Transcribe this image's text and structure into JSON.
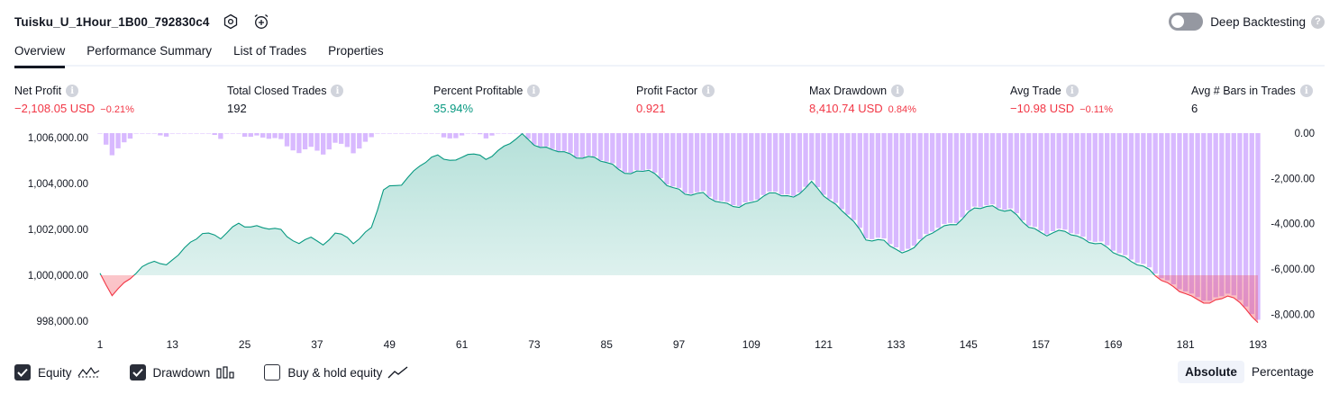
{
  "header": {
    "strategy_name": "Tuisku_U_1Hour_1B00_792830c4",
    "settings_icon": "gear-hexagon-icon",
    "alert_icon": "add-alert-clock-icon"
  },
  "deep_backtesting": {
    "label": "Deep Backtesting",
    "enabled": false,
    "help": "?"
  },
  "tabs": [
    "Overview",
    "Performance Summary",
    "List of Trades",
    "Properties"
  ],
  "active_tab": "Overview",
  "stats": [
    {
      "label": "Net Profit",
      "value": "−2,108.05 USD",
      "pct": "−0.21%",
      "tone": "neg"
    },
    {
      "label": "Total Closed Trades",
      "value": "192",
      "pct": "",
      "tone": "neutral"
    },
    {
      "label": "Percent Profitable",
      "value": "35.94%",
      "pct": "",
      "tone": "pos"
    },
    {
      "label": "Profit Factor",
      "value": "0.921",
      "pct": "",
      "tone": "neg"
    },
    {
      "label": "Max Drawdown",
      "value": "8,410.74 USD",
      "pct": "0.84%",
      "tone": "neg"
    },
    {
      "label": "Avg Trade",
      "value": "−10.98 USD",
      "pct": "−0.11%",
      "tone": "neg"
    },
    {
      "label": "Avg # Bars in Trades",
      "value": "6",
      "pct": "",
      "tone": "neutral"
    }
  ],
  "chart_data": {
    "type": "area",
    "x_ticks": [
      1,
      13,
      25,
      37,
      49,
      61,
      73,
      85,
      97,
      109,
      121,
      133,
      145,
      157,
      169,
      181,
      193
    ],
    "left_axis": {
      "ticks": [
        "1,006,000.00",
        "1,004,000.00",
        "1,002,000.00",
        "1,000,000.00",
        "998,000.00"
      ],
      "tick_values": [
        1006000,
        1004000,
        1002000,
        1000000,
        998000
      ],
      "range": [
        997800,
        1006200
      ]
    },
    "right_axis": {
      "ticks": [
        "0.00",
        "-2,000.00",
        "-4,000.00",
        "-6,000.00",
        "-8,000.00"
      ],
      "tick_values": [
        0,
        -2000,
        -4000,
        -6000,
        -8000
      ],
      "range": [
        -8500,
        0
      ]
    },
    "baseline": 1000000,
    "equity_keypoints": [
      [
        1,
        1000000
      ],
      [
        3,
        999200
      ],
      [
        8,
        1000300
      ],
      [
        10,
        1000700
      ],
      [
        12,
        1000400
      ],
      [
        16,
        1001400
      ],
      [
        18,
        1001900
      ],
      [
        21,
        1001600
      ],
      [
        24,
        1002300
      ],
      [
        26,
        1002100
      ],
      [
        31,
        1002000
      ],
      [
        34,
        1001300
      ],
      [
        36,
        1001700
      ],
      [
        38,
        1001300
      ],
      [
        40,
        1001900
      ],
      [
        43,
        1001400
      ],
      [
        46,
        1002100
      ],
      [
        48,
        1003700
      ],
      [
        51,
        1004000
      ],
      [
        54,
        1004800
      ],
      [
        57,
        1005200
      ],
      [
        60,
        1005000
      ],
      [
        62,
        1005300
      ],
      [
        65,
        1005100
      ],
      [
        68,
        1005600
      ],
      [
        71,
        1006100
      ],
      [
        74,
        1005600
      ],
      [
        77,
        1005400
      ],
      [
        80,
        1005200
      ],
      [
        83,
        1005100
      ],
      [
        86,
        1004800
      ],
      [
        89,
        1004400
      ],
      [
        92,
        1004600
      ],
      [
        95,
        1004000
      ],
      [
        98,
        1003500
      ],
      [
        101,
        1003600
      ],
      [
        104,
        1003100
      ],
      [
        107,
        1003000
      ],
      [
        110,
        1003300
      ],
      [
        113,
        1003600
      ],
      [
        116,
        1003400
      ],
      [
        119,
        1004000
      ],
      [
        122,
        1003300
      ],
      [
        125,
        1002600
      ],
      [
        128,
        1001600
      ],
      [
        131,
        1001500
      ],
      [
        134,
        1000900
      ],
      [
        137,
        1001500
      ],
      [
        140,
        1002000
      ],
      [
        143,
        1002300
      ],
      [
        146,
        1002900
      ],
      [
        149,
        1003000
      ],
      [
        152,
        1002800
      ],
      [
        155,
        1002100
      ],
      [
        158,
        1001800
      ],
      [
        161,
        1001900
      ],
      [
        164,
        1001600
      ],
      [
        167,
        1001300
      ],
      [
        170,
        1000900
      ],
      [
        173,
        1000500
      ],
      [
        176,
        1000000
      ],
      [
        179,
        999500
      ],
      [
        182,
        999000
      ],
      [
        185,
        998800
      ],
      [
        188,
        999100
      ],
      [
        191,
        998600
      ],
      [
        193,
        997900
      ]
    ],
    "series": [
      {
        "name": "Equity",
        "color": "#089981",
        "negative_color": "#f23645"
      },
      {
        "name": "Drawdown",
        "color": "#c9a6f5"
      }
    ],
    "colors": {
      "drawdown_bar": "#d8b9ff",
      "drawdown_bar_strong": "#c8a8f5",
      "equity_line": "#089981",
      "equity_fill": "#cdeee4",
      "negative": "#f23645"
    }
  },
  "legend": [
    {
      "label": "Equity",
      "checked": true,
      "icon": "equity-line-icon"
    },
    {
      "label": "Drawdown",
      "checked": true,
      "icon": "drawdown-bars-icon"
    },
    {
      "label": "Buy & hold equity",
      "checked": false,
      "icon": "buy-hold-line-icon"
    }
  ],
  "mode": {
    "options": [
      "Absolute",
      "Percentage"
    ],
    "active": "Absolute"
  }
}
